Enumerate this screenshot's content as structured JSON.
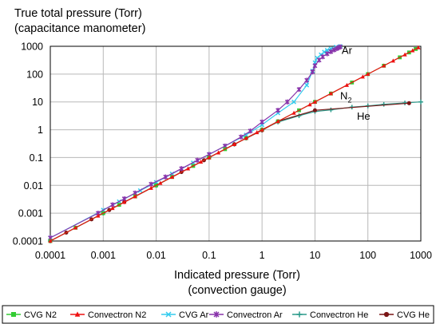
{
  "chart_data": {
    "type": "line",
    "xscale": "log",
    "yscale": "log",
    "xlim": [
      0.0001,
      1000
    ],
    "ylim": [
      0.0001,
      1000
    ],
    "grid": true,
    "legend_position": "bottom",
    "ylabel_lines": [
      "True total pressure (Torr)",
      "(capacitance manometer)"
    ],
    "xlabel_lines": [
      "Indicated pressure (Torr)",
      "(convection gauge)"
    ],
    "x_tick_labels": [
      "0.0001",
      "0.001",
      "0.01",
      "0.1",
      "1",
      "10",
      "100",
      "1000"
    ],
    "y_tick_labels": [
      "0.0001",
      "0.001",
      "0.01",
      "0.1",
      "1",
      "10",
      "100",
      "1000"
    ],
    "annotations": [
      {
        "text": "Ar",
        "x": 32,
        "y": 700
      },
      {
        "text": "N",
        "sub": "2",
        "x": 30,
        "y": 16
      },
      {
        "text": "He",
        "x": 62,
        "y": 3
      }
    ],
    "series": [
      {
        "name": "CVG N2",
        "color": "#33cc33",
        "marker": "square",
        "x": [
          0.0001,
          0.0003,
          0.001,
          0.002,
          0.004,
          0.01,
          0.02,
          0.05,
          0.1,
          0.2,
          0.5,
          1,
          2,
          5,
          10,
          20,
          50,
          100,
          200,
          400,
          600,
          800
        ],
        "y": [
          0.0001,
          0.0003,
          0.001,
          0.002,
          0.004,
          0.01,
          0.02,
          0.05,
          0.1,
          0.2,
          0.5,
          1,
          2,
          5,
          10,
          20,
          50,
          100,
          200,
          400,
          600,
          800
        ]
      },
      {
        "name": "Convectron N2",
        "color": "#ee1111",
        "marker": "triangle",
        "x": [
          0.0001,
          0.0003,
          0.0008,
          0.0015,
          0.0025,
          0.004,
          0.008,
          0.012,
          0.02,
          0.04,
          0.07,
          0.1,
          0.15,
          0.3,
          0.5,
          0.8,
          1,
          2,
          4,
          8,
          10,
          20,
          40,
          80,
          100,
          200,
          300,
          500,
          700,
          900
        ],
        "y": [
          0.0001,
          0.0003,
          0.0008,
          0.0015,
          0.0025,
          0.004,
          0.008,
          0.012,
          0.02,
          0.04,
          0.07,
          0.1,
          0.15,
          0.3,
          0.5,
          0.8,
          1,
          2,
          4,
          8,
          10,
          20,
          40,
          80,
          100,
          200,
          300,
          500,
          700,
          900
        ]
      },
      {
        "name": "CVG Ar",
        "color": "#33ccee",
        "marker": "x",
        "x": [
          0.0001,
          0.001,
          0.002,
          0.005,
          0.01,
          0.02,
          0.05,
          0.1,
          0.2,
          0.5,
          1,
          2,
          4,
          7,
          9,
          10,
          11,
          13,
          15,
          17,
          20,
          25,
          30
        ],
        "y": [
          0.00013,
          0.0013,
          0.0026,
          0.0065,
          0.013,
          0.026,
          0.065,
          0.13,
          0.26,
          0.65,
          1.5,
          4,
          10,
          40,
          130,
          260,
          380,
          500,
          620,
          720,
          820,
          940,
          1000
        ]
      },
      {
        "name": "Convectron Ar",
        "color": "#8833aa",
        "marker": "star",
        "x": [
          0.0001,
          0.0008,
          0.0015,
          0.0025,
          0.004,
          0.008,
          0.015,
          0.03,
          0.06,
          0.1,
          0.2,
          0.4,
          0.6,
          1,
          2,
          3,
          5,
          7,
          9,
          10,
          12,
          14,
          17,
          20,
          23,
          26,
          28,
          30
        ],
        "y": [
          0.00013,
          0.001,
          0.002,
          0.0033,
          0.0053,
          0.011,
          0.02,
          0.04,
          0.08,
          0.13,
          0.26,
          0.55,
          0.9,
          1.9,
          5,
          10,
          28,
          60,
          120,
          200,
          320,
          420,
          540,
          640,
          740,
          830,
          900,
          950
        ]
      },
      {
        "name": "Convectron He",
        "color": "#2a9a8a",
        "marker": "plus",
        "x": [
          0.0001,
          0.001,
          0.01,
          0.1,
          0.3,
          0.5,
          1,
          2,
          5,
          10,
          20,
          50,
          100,
          200,
          500,
          1000
        ],
        "y": [
          0.0001,
          0.001,
          0.01,
          0.1,
          0.3,
          0.5,
          1,
          1.9,
          3.2,
          4.5,
          5.2,
          6.5,
          7.2,
          8.2,
          9.2,
          10
        ]
      },
      {
        "name": "CVG He",
        "color": "#7a1515",
        "marker": "circle",
        "x": [
          0.0001,
          0.0002,
          0.0006,
          0.0013,
          0.0025,
          0.01,
          0.03,
          0.08,
          0.3,
          1,
          2,
          10,
          600
        ],
        "y": [
          0.0001,
          0.0002,
          0.0006,
          0.0013,
          0.0025,
          0.01,
          0.03,
          0.08,
          0.3,
          0.95,
          2,
          5,
          9
        ]
      }
    ]
  }
}
